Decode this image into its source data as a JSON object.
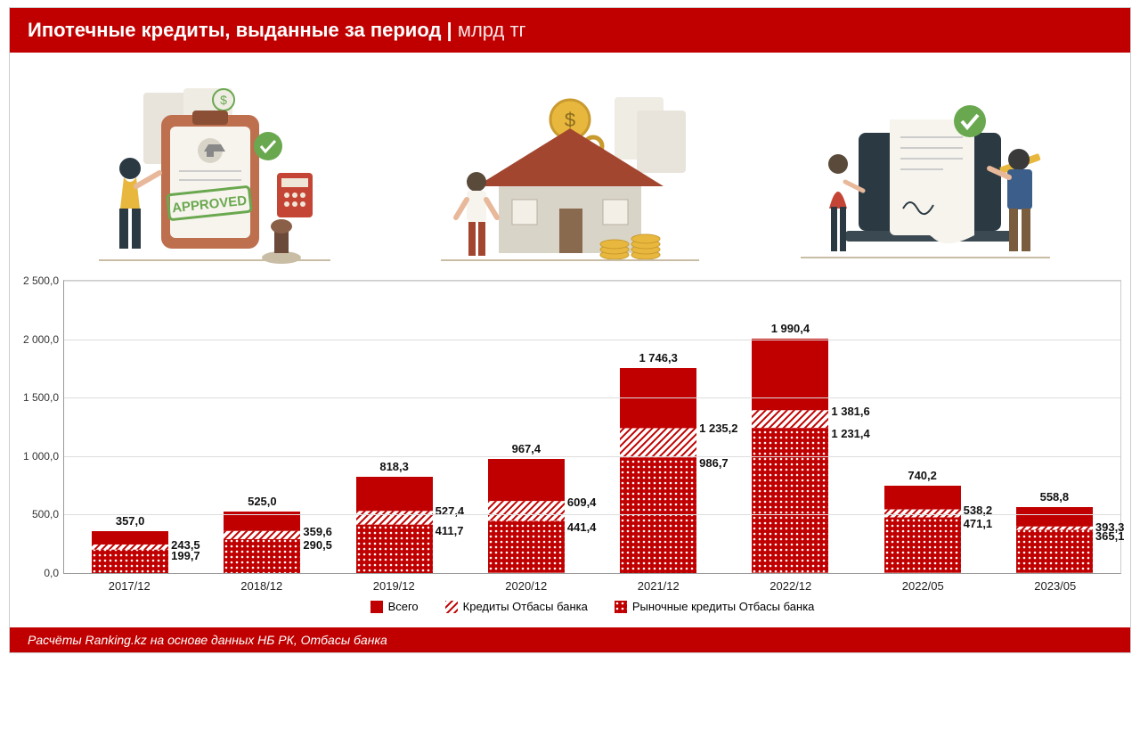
{
  "header": {
    "title": "Ипотечные кредиты, выданные за период",
    "separator": " | ",
    "unit": "млрд тг",
    "bg_color": "#c00000"
  },
  "footer": {
    "text": "Расчёты Ranking.kz на основе данных НБ РК, Отбасы банка"
  },
  "chart": {
    "type": "stacked-bar",
    "ymax": 2500,
    "ytick_step": 500,
    "yticks": [
      "0,0",
      "500,0",
      "1 000,0",
      "1 500,0",
      "2 000,0",
      "2 500,0"
    ],
    "grid_color": "#dddddd",
    "axis_color": "#999999",
    "colors": {
      "total": "#c00000",
      "otbasy": "#c00000",
      "market": "#c00000",
      "hatch_bg": "#ffffff"
    },
    "legend": [
      {
        "label": "Всего",
        "fill": "solid"
      },
      {
        "label": "Кредиты Отбасы банка",
        "fill": "diag"
      },
      {
        "label": "Рыночные кредиты Отбасы банка",
        "fill": "dots"
      }
    ],
    "categories": [
      "2017/12",
      "2018/12",
      "2019/12",
      "2020/12",
      "2021/12",
      "2022/12",
      "2022/05",
      "2023/05"
    ],
    "series": [
      {
        "total": 357.0,
        "otbasy": 243.5,
        "market": 199.7,
        "labels": {
          "total": "357,0",
          "otbasy": "243,5",
          "market": "199,7"
        }
      },
      {
        "total": 525.0,
        "otbasy": 359.6,
        "market": 290.5,
        "labels": {
          "total": "525,0",
          "otbasy": "359,6",
          "market": "290,5"
        }
      },
      {
        "total": 818.3,
        "otbasy": 527.4,
        "market": 411.7,
        "labels": {
          "total": "818,3",
          "otbasy": "527,4",
          "market": "411,7"
        }
      },
      {
        "total": 967.4,
        "otbasy": 609.4,
        "market": 441.4,
        "labels": {
          "total": "967,4",
          "otbasy": "609,4",
          "market": "441,4"
        }
      },
      {
        "total": 1746.3,
        "otbasy": 1235.2,
        "market": 986.7,
        "labels": {
          "total": "1 746,3",
          "otbasy": "1 235,2",
          "market": "986,7"
        }
      },
      {
        "total": 1990.4,
        "otbasy": 1381.6,
        "market": 1231.4,
        "labels": {
          "total": "1 990,4",
          "otbasy": "1 381,6",
          "market": "1 231,4"
        }
      },
      {
        "total": 740.2,
        "otbasy": 538.2,
        "market": 471.1,
        "labels": {
          "total": "740,2",
          "otbasy": "538,2",
          "market": "471,1"
        }
      },
      {
        "total": 558.8,
        "otbasy": 393.3,
        "market": 365.1,
        "labels": {
          "total": "558,8",
          "otbasy": "393,3",
          "market": "365,1"
        }
      }
    ]
  },
  "illustrations": {
    "accent_green": "#6aa84f",
    "accent_yellow": "#e8b83e",
    "accent_red": "#c44536",
    "clipboard": "#bd6f4e",
    "paper": "#e8e4dc",
    "skin": "#e8b89b",
    "dark": "#2b3a42",
    "house_roof": "#a3462f",
    "house_wall": "#d9d4c8"
  }
}
